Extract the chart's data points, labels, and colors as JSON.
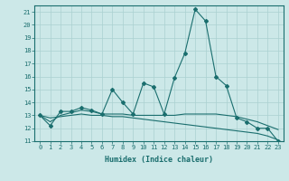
{
  "title": "",
  "xlabel": "Humidex (Indice chaleur)",
  "background_color": "#cce8e8",
  "grid_color": "#aad0d0",
  "line_color": "#1a6e6e",
  "xlim": [
    -0.5,
    23.5
  ],
  "ylim": [
    11,
    21.5
  ],
  "x_ticks": [
    0,
    1,
    2,
    3,
    4,
    5,
    6,
    7,
    8,
    9,
    10,
    11,
    12,
    13,
    14,
    15,
    16,
    17,
    18,
    19,
    20,
    21,
    22,
    23
  ],
  "y_ticks": [
    11,
    12,
    13,
    14,
    15,
    16,
    17,
    18,
    19,
    20,
    21
  ],
  "line1_x": [
    0,
    1,
    2,
    3,
    4,
    5,
    6,
    7,
    8,
    9,
    10,
    11,
    12,
    13,
    14,
    15,
    16,
    17,
    18,
    19,
    20,
    21,
    22,
    23
  ],
  "line1_y": [
    13.0,
    12.2,
    13.3,
    13.3,
    13.6,
    13.4,
    13.1,
    15.0,
    14.0,
    13.1,
    15.5,
    15.2,
    13.1,
    15.9,
    17.8,
    21.2,
    20.3,
    16.0,
    15.3,
    12.8,
    12.5,
    12.0,
    12.0,
    11.0
  ],
  "line2_x": [
    0,
    1,
    2,
    3,
    4,
    5,
    6,
    7,
    8,
    9,
    10,
    11,
    12,
    13,
    14,
    15,
    16,
    17,
    18,
    19,
    20,
    21,
    22,
    23
  ],
  "line2_y": [
    13.0,
    12.5,
    13.0,
    13.2,
    13.4,
    13.3,
    13.1,
    13.1,
    13.1,
    13.0,
    13.0,
    13.0,
    13.0,
    13.0,
    13.1,
    13.1,
    13.1,
    13.1,
    13.0,
    12.9,
    12.7,
    12.5,
    12.2,
    11.9
  ],
  "line3_x": [
    0,
    1,
    2,
    3,
    4,
    5,
    6,
    7,
    8,
    9,
    10,
    11,
    12,
    13,
    14,
    15,
    16,
    17,
    18,
    19,
    20,
    21,
    22,
    23
  ],
  "line3_y": [
    13.0,
    12.8,
    12.9,
    13.0,
    13.1,
    13.0,
    13.0,
    12.9,
    12.9,
    12.8,
    12.7,
    12.6,
    12.5,
    12.4,
    12.3,
    12.2,
    12.1,
    12.0,
    11.9,
    11.8,
    11.7,
    11.6,
    11.4,
    11.1
  ],
  "tick_fontsize": 5,
  "xlabel_fontsize": 6
}
